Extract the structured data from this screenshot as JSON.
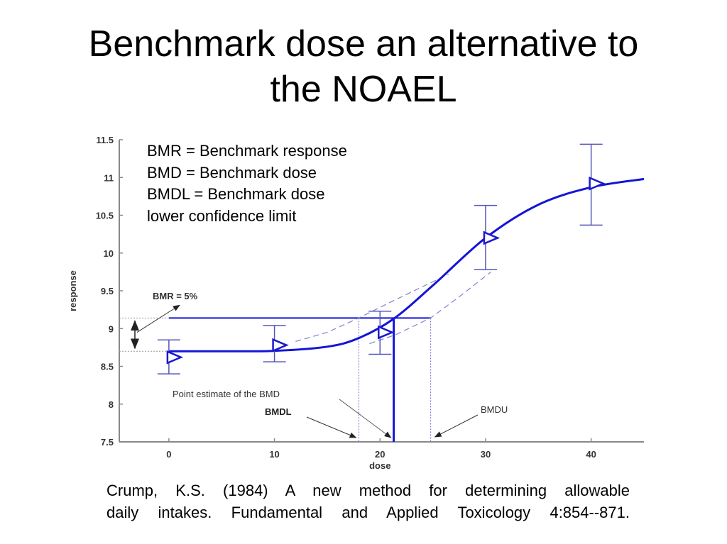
{
  "slide": {
    "title_lines": [
      "Benchmark dose an alternative to",
      "the NOAEL"
    ],
    "definitions": [
      "BMR = Benchmark response",
      "BMD = Benchmark dose",
      "BMDL = Benchmark dose",
      "lower confidence limit"
    ],
    "citation_lines": [
      "Crump, K.S. (1984) A new method for determining allowable",
      "daily intakes. Fundamental and Applied Toxicology 4:854--871."
    ]
  },
  "chart_data": {
    "type": "scatter",
    "xlabel": "dose",
    "ylabel": "response",
    "xlim": [
      -4.7,
      45
    ],
    "ylim": [
      7.5,
      11.5
    ],
    "xticks": [
      "0",
      "10",
      "20",
      "30",
      "40"
    ],
    "yticks": [
      "7.5",
      "8",
      "8.5",
      "9",
      "9.5",
      "10",
      "10.5",
      "11",
      "11.5"
    ],
    "grid": false,
    "colors": {
      "data": "#1a1acc",
      "curve": "#1414d8",
      "band": "#8a8ad0",
      "axis": "#888888",
      "annotation": "#555555"
    },
    "observations": [
      {
        "dose": 0,
        "mean": 8.62,
        "lower": 8.4,
        "upper": 8.85
      },
      {
        "dose": 10,
        "mean": 8.78,
        "lower": 8.56,
        "upper": 9.04
      },
      {
        "dose": 20,
        "mean": 8.95,
        "lower": 8.66,
        "upper": 9.23
      },
      {
        "dose": 30,
        "mean": 10.2,
        "lower": 9.78,
        "upper": 10.63
      },
      {
        "dose": 40,
        "mean": 10.92,
        "lower": 10.37,
        "upper": 11.44
      }
    ],
    "fitted_curve": {
      "x": [
        0,
        5,
        10,
        15,
        18,
        21.3,
        25,
        30,
        35,
        40,
        45
      ],
      "y": [
        8.7,
        8.7,
        8.705,
        8.76,
        8.875,
        9.13,
        9.57,
        10.2,
        10.64,
        10.87,
        10.98
      ]
    },
    "upper_band": {
      "x": [
        12,
        15,
        18,
        21,
        23.5,
        26.5
      ],
      "y": [
        8.83,
        8.95,
        9.14,
        9.35,
        9.52,
        9.72
      ]
    },
    "lower_band": {
      "x": [
        19,
        21.5,
        24.8,
        27.5,
        30.5
      ],
      "y": [
        8.8,
        8.92,
        9.14,
        9.42,
        9.75
      ]
    },
    "background_response": 8.7,
    "bmr_response": 9.14,
    "bmd": 21.3,
    "bmdl": 18.0,
    "bmdu": 24.8,
    "annotations": {
      "bmr": "BMR = 5%",
      "point_estimate": "Point estimate of the BMD",
      "bmdl": "BMDL",
      "bmdu": "BMDU"
    }
  }
}
